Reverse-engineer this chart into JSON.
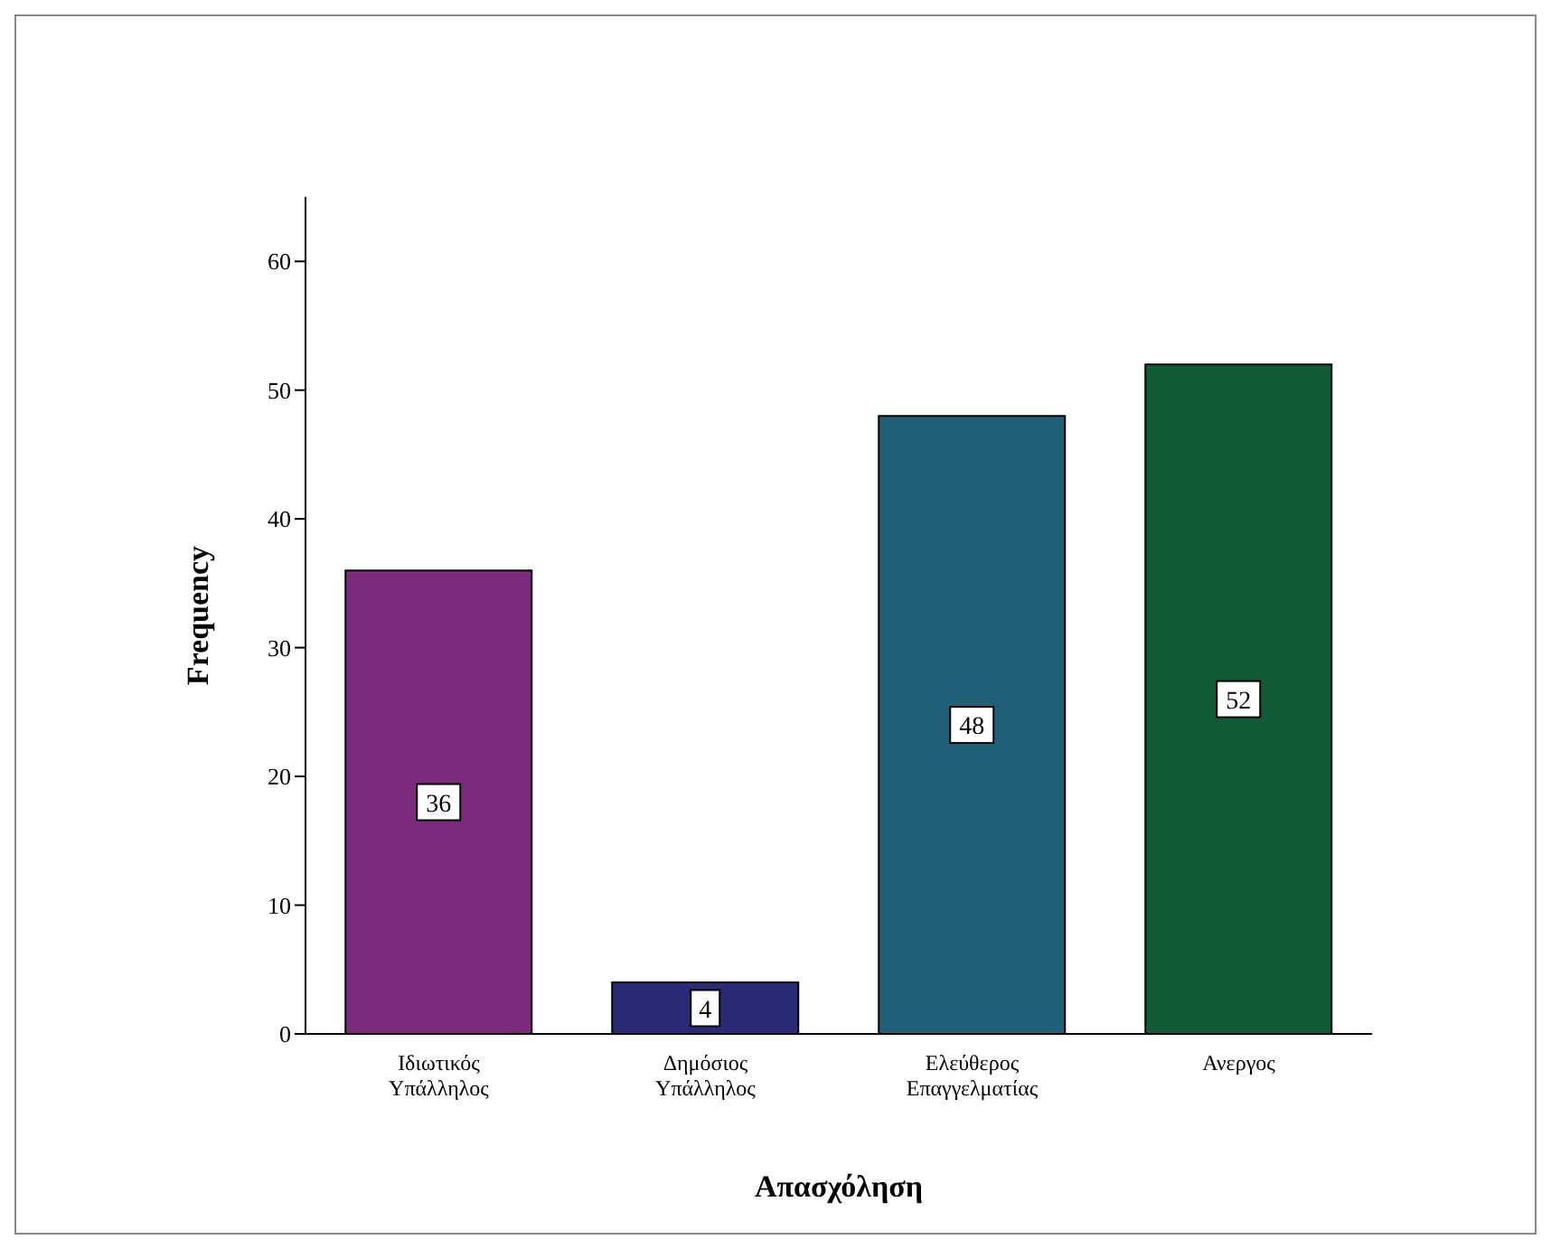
{
  "chart_data": {
    "type": "bar",
    "xlabel": "Απασχόληση",
    "ylabel": "Frequency",
    "categories": [
      "Ιδιωτικός\nΥπάλληλος",
      "Δημόσιος\nΥπάλληλος",
      "Ελεύθερος\nΕπαγγελματίας",
      "Ανεργος"
    ],
    "values": [
      36,
      4,
      48,
      52
    ],
    "colors": [
      "#7b2a7c",
      "#2b2a78",
      "#1f5f78",
      "#0f5c36"
    ],
    "ylim": [
      0,
      65
    ],
    "yticks": [
      0,
      10,
      20,
      30,
      40,
      50,
      60
    ],
    "grid": false,
    "legend": false,
    "data_labels": true
  }
}
